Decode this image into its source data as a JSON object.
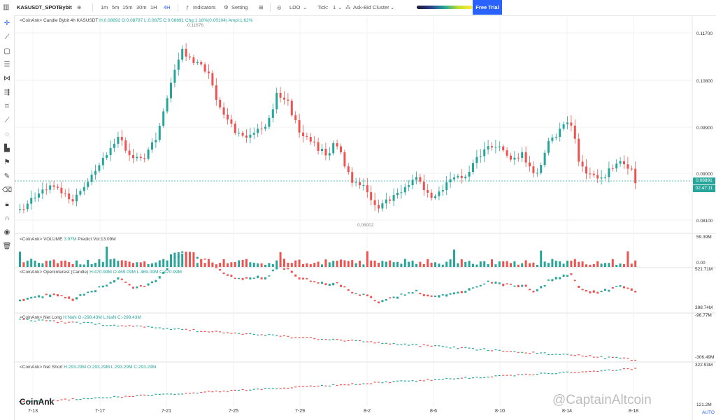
{
  "toolbar": {
    "symbol": "KASUSDT_SPOT",
    "exchange": "Bybit",
    "timeframes": [
      "1m",
      "5m",
      "15m",
      "30m",
      "1H",
      "4H"
    ],
    "active_timeframe": "4H",
    "indicators_label": "Indicators",
    "setting_label": "Setting",
    "ldo_label": "LDO",
    "tick_label": "Tick:",
    "tick_value": "1",
    "cluster_label": "Ask-Bid Cluster",
    "free_trial": "Free Trial"
  },
  "panes": {
    "candle": {
      "title": "<CoinAnk> Candle",
      "info": "Bybit 4h KASUSDT",
      "ohlc": "H:0.08892 O:0.08787 L:0.0875 C:0.08891",
      "change": "Chg:1.18%(0.00104)",
      "ampl": "Ampl:1.62%",
      "axis": [
        "0.11700",
        "0.10800",
        "0.09900",
        "0.09000",
        "0.08100"
      ],
      "high_marker": "0.11676",
      "low_marker": "0.08002",
      "price_tag": "0.08891",
      "countdown_tag": "02:47:11"
    },
    "volume": {
      "title": "<CoinAnk> VOLUME",
      "value": "3.97M",
      "predict": "Predict Vol:13.09M",
      "axis_top": "59.39M",
      "axis_bottom": "0.00"
    },
    "oi": {
      "title": "<CoinAnk> OpenInterest (Candle)",
      "values": "H:470.99M O:469.09M L:469.09M C:470.99M",
      "axis_top": "521.71M",
      "axis_bottom": "398.74M"
    },
    "net_long": {
      "title": "<CoinAnk> Net Long",
      "values": "H:NaN O:-298.43M L:NaN C:-298.43M",
      "axis_top": "-96.77M",
      "axis_bottom": "-306.49M"
    },
    "net_short": {
      "title": "<CoinAnk> Net Short",
      "values": "H:293.29M O:293.29M L:293.29M C:293.29M",
      "axis_top": "322.93M",
      "axis_bottom": "121.2M"
    }
  },
  "x_axis": [
    "7-13",
    "7-17",
    "7-21",
    "7-25",
    "7-29",
    "8-2",
    "8-6",
    "8-10",
    "8-14",
    "8-18"
  ],
  "auto_label": "AUTO",
  "logo": "CoinAnk",
  "watermark": "@CaptainAltcoin",
  "colors": {
    "up": "#26a69a",
    "down": "#ef5350",
    "accent": "#2962ff"
  },
  "icons": [
    "crosshair-icon",
    "trend-line-icon",
    "rectangle-icon",
    "fib-icon",
    "pattern-icon",
    "channel-icon",
    "note-icon",
    "ruler-icon",
    "magnet-icon",
    "bar-chart-icon",
    "flag-icon",
    "brush-icon",
    "lock-icon",
    "magnet-mode-icon",
    "eye-icon",
    "trash-icon"
  ]
}
